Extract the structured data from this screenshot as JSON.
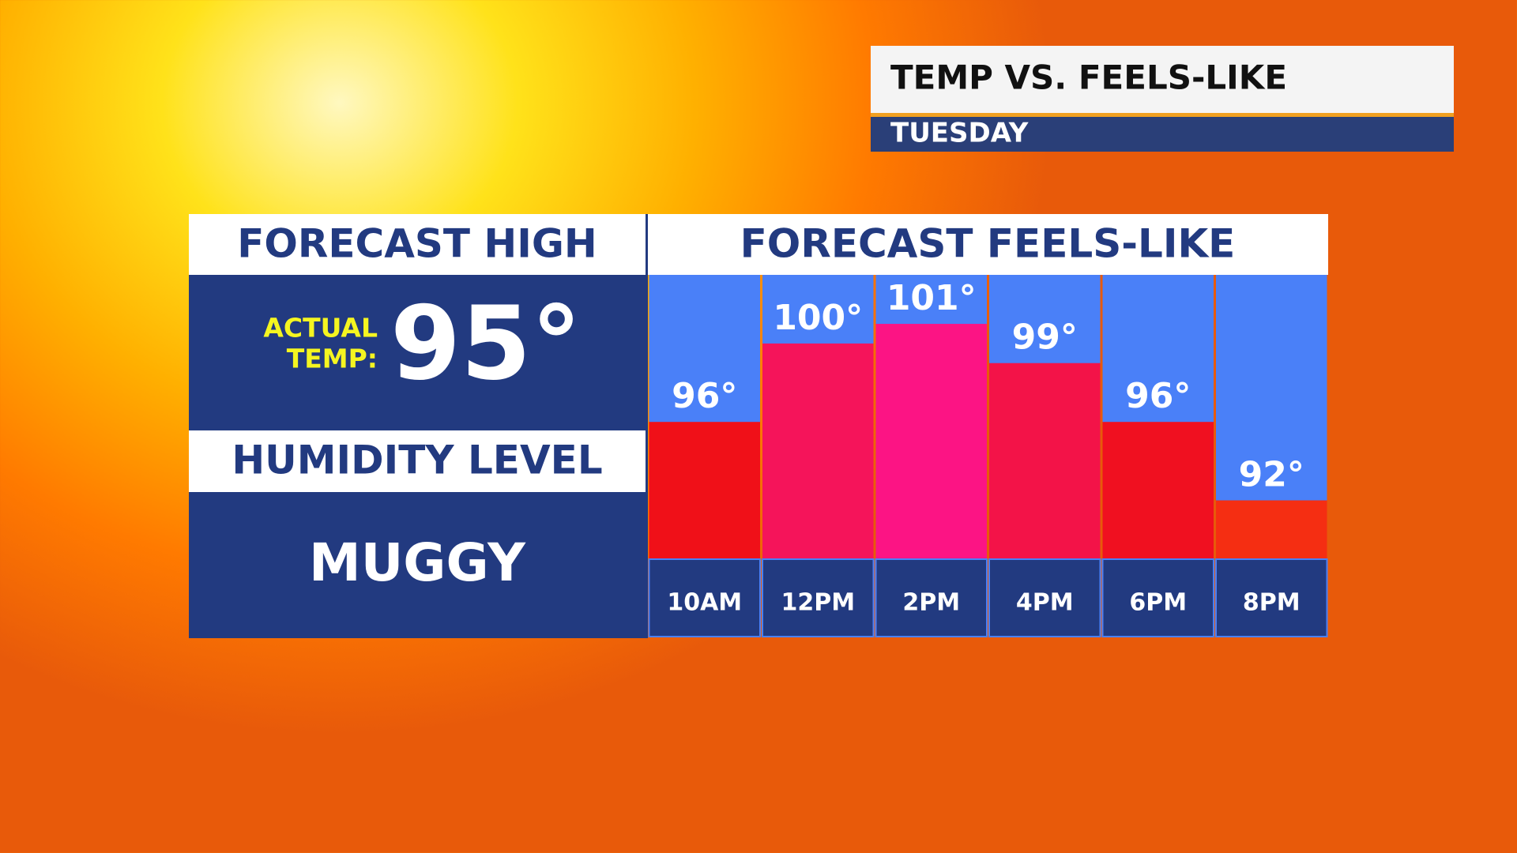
{
  "header": {
    "title": "TEMP VS. FEELS-LIKE",
    "subtitle": "TUESDAY"
  },
  "left_panel": {
    "title": "FORECAST HIGH",
    "label_lines": [
      "ACTUAL",
      "TEMP:"
    ],
    "value": "95°",
    "humidity_title": "HUMIDITY LEVEL",
    "humidity_value": "MUGGY"
  },
  "chart_data": {
    "type": "bar",
    "title": "FORECAST FEELS-LIKE",
    "categories": [
      "10AM",
      "12PM",
      "2PM",
      "4PM",
      "6PM",
      "8PM"
    ],
    "values": [
      96,
      100,
      101,
      99,
      96,
      92
    ],
    "value_labels": [
      "96°",
      "100°",
      "101°",
      "99°",
      "96°",
      "92°"
    ],
    "colors": [
      "#f01018",
      "#f5145a",
      "#fc1484",
      "#f31348",
      "#f01020",
      "#f52e12"
    ],
    "ylim": [
      89,
      103.5
    ]
  }
}
